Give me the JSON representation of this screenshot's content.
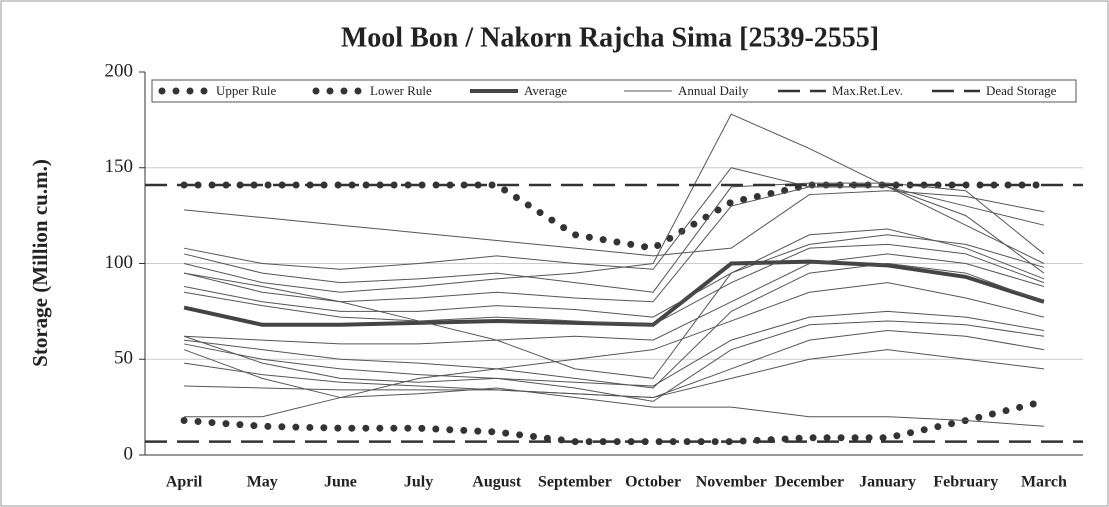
{
  "chart_data": {
    "type": "line",
    "title": "Mool Bon / Nakorn Rajcha Sima [2539-2555]",
    "y_label": "Storage (Million cu.m.)",
    "categories": [
      "April",
      "May",
      "June",
      "July",
      "August",
      "September",
      "October",
      "November",
      "December",
      "January",
      "February",
      "March"
    ],
    "ylim": [
      0,
      200
    ],
    "yticks": [
      0,
      50,
      100,
      150,
      200
    ],
    "grid": true,
    "legend": "top",
    "series": [
      {
        "name": "Upper Rule",
        "style": "dots",
        "color": "#333333",
        "values": [
          141,
          141,
          141,
          141,
          141,
          115,
          108,
          132,
          141,
          141,
          141,
          141
        ]
      },
      {
        "name": "Lower Rule",
        "style": "dots",
        "color": "#333333",
        "values": [
          18,
          15,
          14,
          14,
          12,
          7,
          7,
          7,
          9,
          9,
          18,
          28
        ]
      },
      {
        "name": "Average",
        "style": "thick",
        "color": "#444444",
        "values": [
          77,
          68,
          68,
          69,
          70,
          69,
          68,
          100,
          101,
          99,
          93,
          80
        ]
      },
      {
        "name": "Annual Daily",
        "style": "thin",
        "color": "#555555",
        "values": [
          [
            128,
            124,
            120,
            116,
            112,
            108,
            104,
            108,
            136,
            138,
            135,
            127
          ],
          [
            108,
            100,
            97,
            100,
            104,
            100,
            97,
            150,
            140,
            140,
            130,
            120
          ],
          [
            105,
            95,
            90,
            92,
            95,
            90,
            85,
            140,
            142,
            142,
            138,
            105
          ],
          [
            100,
            90,
            85,
            88,
            92,
            95,
            100,
            178,
            160,
            140,
            120,
            100
          ],
          [
            95,
            85,
            80,
            82,
            85,
            82,
            80,
            130,
            140,
            140,
            125,
            95
          ],
          [
            88,
            80,
            75,
            75,
            78,
            76,
            72,
            95,
            110,
            115,
            110,
            98
          ],
          [
            85,
            78,
            72,
            70,
            72,
            70,
            68,
            90,
            108,
            110,
            105,
            90
          ],
          [
            62,
            60,
            58,
            58,
            60,
            62,
            60,
            80,
            100,
            105,
            100,
            88
          ],
          [
            60,
            55,
            50,
            48,
            45,
            40,
            35,
            75,
            95,
            100,
            95,
            80
          ],
          [
            58,
            50,
            45,
            42,
            40,
            38,
            36,
            60,
            72,
            75,
            72,
            65
          ],
          [
            48,
            42,
            38,
            36,
            34,
            32,
            30,
            45,
            60,
            65,
            62,
            55
          ],
          [
            36,
            35,
            34,
            34,
            34,
            32,
            30,
            40,
            50,
            55,
            50,
            45
          ],
          [
            55,
            40,
            30,
            32,
            35,
            30,
            25,
            25,
            20,
            20,
            18,
            15
          ],
          [
            62,
            48,
            40,
            38,
            40,
            35,
            28,
            55,
            68,
            70,
            68,
            62
          ],
          [
            20,
            20,
            30,
            40,
            45,
            50,
            55,
            70,
            85,
            90,
            82,
            72
          ],
          [
            95,
            88,
            80,
            70,
            60,
            45,
            40,
            95,
            115,
            118,
            108,
            92
          ]
        ]
      },
      {
        "name": "Max.Ret.Lev.",
        "style": "dash",
        "color": "#333333",
        "value": 141
      },
      {
        "name": "Dead Storage",
        "style": "dash",
        "color": "#333333",
        "value": 7
      }
    ]
  }
}
